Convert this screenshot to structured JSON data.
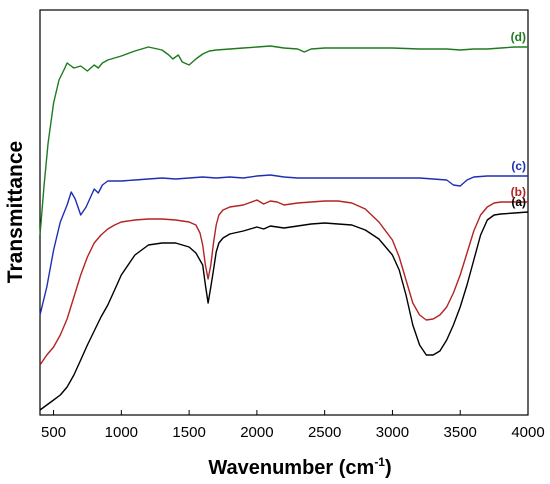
{
  "chart_data": {
    "type": "line",
    "xlabel": "Wavenumber (cm",
    "xlabel_sup": "-1",
    "xlabel_close": ")",
    "ylabel": "Transmittance",
    "xlim": [
      400,
      4000
    ],
    "xticks": [
      500,
      1000,
      1500,
      2000,
      2500,
      3000,
      3500,
      4000
    ],
    "y_ticks_shown": false,
    "grid": false,
    "legend": "none",
    "series": [
      {
        "name": "(a)",
        "color": "#000000",
        "x": [
          400,
          450,
          500,
          550,
          600,
          650,
          700,
          750,
          800,
          850,
          900,
          950,
          1000,
          1100,
          1200,
          1300,
          1400,
          1500,
          1550,
          1600,
          1620,
          1640,
          1660,
          1680,
          1700,
          1720,
          1750,
          1800,
          1900,
          2000,
          2050,
          2100,
          2150,
          2200,
          2300,
          2400,
          2500,
          2600,
          2700,
          2800,
          2900,
          3000,
          3050,
          3100,
          3150,
          3200,
          3250,
          3300,
          3350,
          3400,
          3450,
          3500,
          3550,
          3600,
          3650,
          3700,
          3750,
          3800,
          3900,
          4000
        ],
        "y": [
          5,
          10,
          15,
          20,
          28,
          40,
          55,
          70,
          84,
          98,
          110,
          125,
          140,
          160,
          170,
          172,
          172,
          168,
          162,
          150,
          130,
          112,
          128,
          145,
          163,
          172,
          177,
          181,
          184,
          188,
          186,
          189,
          188,
          187,
          189,
          191,
          192,
          191,
          190,
          185,
          176,
          160,
          145,
          120,
          90,
          70,
          60,
          60,
          64,
          75,
          90,
          108,
          130,
          155,
          180,
          195,
          200,
          201,
          202,
          203
        ]
      },
      {
        "name": "(b)",
        "color": "#b32424",
        "x": [
          400,
          450,
          500,
          550,
          600,
          650,
          700,
          750,
          800,
          850,
          900,
          950,
          1000,
          1100,
          1200,
          1300,
          1400,
          1500,
          1550,
          1580,
          1600,
          1620,
          1640,
          1660,
          1680,
          1700,
          1720,
          1750,
          1800,
          1900,
          2000,
          2050,
          2100,
          2150,
          2200,
          2300,
          2400,
          2500,
          2600,
          2700,
          2800,
          2900,
          3000,
          3050,
          3100,
          3150,
          3200,
          3250,
          3300,
          3350,
          3400,
          3450,
          3500,
          3550,
          3600,
          3650,
          3700,
          3750,
          3800,
          3900,
          4000
        ],
        "y": [
          50,
          60,
          68,
          80,
          96,
          118,
          140,
          158,
          172,
          180,
          186,
          190,
          193,
          195,
          196,
          196,
          195,
          193,
          190,
          182,
          170,
          150,
          136,
          150,
          172,
          190,
          200,
          205,
          208,
          210,
          215,
          211,
          214,
          213,
          210,
          212,
          213,
          214,
          214,
          212,
          206,
          193,
          175,
          158,
          135,
          112,
          100,
          95,
          96,
          100,
          108,
          122,
          140,
          162,
          184,
          200,
          208,
          212,
          213,
          213,
          213
        ]
      },
      {
        "name": "(c)",
        "color": "#1f2fb3",
        "x": [
          400,
          450,
          500,
          550,
          600,
          630,
          660,
          700,
          740,
          780,
          800,
          830,
          860,
          900,
          950,
          1000,
          1100,
          1200,
          1300,
          1400,
          1500,
          1600,
          1700,
          1800,
          1900,
          2000,
          2100,
          2150,
          2200,
          2300,
          2400,
          2500,
          2600,
          2700,
          2800,
          2900,
          3000,
          3100,
          3200,
          3300,
          3400,
          3450,
          3500,
          3550,
          3600,
          3700,
          3800,
          3900,
          4000
        ],
        "y": [
          100,
          128,
          165,
          193,
          210,
          223,
          216,
          200,
          208,
          220,
          226,
          222,
          230,
          234,
          234,
          234,
          235,
          236,
          237,
          236,
          237,
          238,
          237,
          238,
          237,
          239,
          240,
          239,
          238,
          237,
          237,
          237,
          237,
          237,
          237,
          237,
          237,
          237,
          237,
          236,
          235,
          230,
          229,
          235,
          238,
          239,
          239,
          239,
          239
        ]
      },
      {
        "name": "(d)",
        "color": "#1f7a1f",
        "x": [
          400,
          430,
          460,
          500,
          540,
          580,
          600,
          620,
          650,
          700,
          750,
          800,
          830,
          860,
          900,
          950,
          1000,
          1100,
          1200,
          1300,
          1350,
          1380,
          1420,
          1450,
          1500,
          1550,
          1600,
          1650,
          1700,
          1800,
          1900,
          2000,
          2100,
          2200,
          2300,
          2350,
          2400,
          2500,
          2600,
          2800,
          3000,
          3200,
          3400,
          3500,
          3600,
          3700,
          3800,
          3900,
          4000
        ],
        "y": [
          180,
          230,
          272,
          312,
          335,
          346,
          352,
          350,
          347,
          349,
          344,
          350,
          347,
          352,
          355,
          357,
          359,
          364,
          368,
          365,
          360,
          356,
          360,
          353,
          350,
          356,
          361,
          364,
          365,
          366,
          367,
          368,
          369,
          367,
          366,
          363,
          366,
          367,
          367,
          367,
          367,
          366,
          366,
          365,
          366,
          366,
          367,
          368,
          368
        ]
      }
    ]
  }
}
